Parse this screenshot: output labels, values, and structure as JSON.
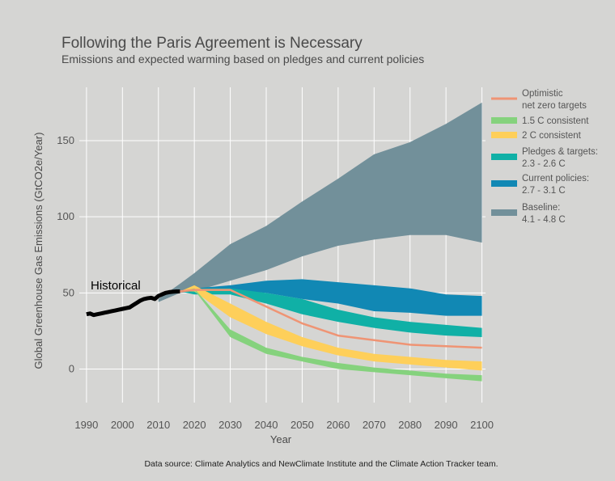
{
  "chart_data": {
    "type": "area",
    "title": "Following the Paris Agreement is Necessary",
    "subtitle": "Emissions and expected warming based on pledges and current policies",
    "xlabel": "Year",
    "ylabel": "Global Greenhouse Gas Emissions (GtCO2e/Year)",
    "xlim": [
      1988,
      2101
    ],
    "ylim": [
      -22,
      185
    ],
    "x_ticks": [
      1990,
      2000,
      2010,
      2020,
      2030,
      2040,
      2050,
      2060,
      2070,
      2080,
      2090,
      2100
    ],
    "y_ticks": [
      0,
      50,
      100,
      150
    ],
    "grid": true,
    "legend_position": "right",
    "annotation": "Historical",
    "source": "Data source: Climate Analytics and NewClimate Institute and the Climate Action Tracker team.",
    "historical": {
      "color": "#000000",
      "x": [
        1990,
        1991,
        1992,
        1993,
        1994,
        1995,
        1996,
        1997,
        1998,
        1999,
        2000,
        2001,
        2002,
        2003,
        2004,
        2005,
        2006,
        2007,
        2008,
        2009,
        2010,
        2011,
        2012,
        2013,
        2014,
        2015,
        2016
      ],
      "y": [
        36,
        36.5,
        35.5,
        36,
        36.5,
        37,
        37.5,
        38,
        38.5,
        39,
        39.5,
        40,
        40.5,
        42,
        43.5,
        45,
        46,
        46.5,
        46.8,
        46,
        48,
        49,
        50,
        50.5,
        50.8,
        51,
        51
      ]
    },
    "series": [
      {
        "name": "Baseline:\n4.1 - 4.8 C",
        "color": "#72909a",
        "style": "band",
        "x": [
          2010,
          2016,
          2020,
          2030,
          2040,
          2050,
          2060,
          2070,
          2080,
          2090,
          2100
        ],
        "low": [
          44,
          50,
          51,
          58,
          65,
          74,
          81,
          85,
          88,
          88,
          83
        ],
        "high": [
          46,
          56,
          63,
          82,
          94,
          110,
          125,
          141,
          149,
          161,
          175
        ]
      },
      {
        "name": "Current policies:\n2.7 - 3.1 C",
        "color": "#1188b4",
        "style": "band",
        "x": [
          2016,
          2020,
          2030,
          2040,
          2050,
          2060,
          2070,
          2080,
          2090,
          2100
        ],
        "low": [
          51,
          52,
          52,
          50,
          46,
          43,
          38,
          37,
          35,
          35
        ],
        "high": [
          51,
          53,
          55,
          58,
          59,
          57,
          55,
          53,
          49,
          48
        ]
      },
      {
        "name": "Pledges & targets:\n2.3 - 2.6 C",
        "color": "#10b0a6",
        "style": "band",
        "x": [
          2016,
          2020,
          2030,
          2040,
          2050,
          2060,
          2070,
          2080,
          2090,
          2100
        ],
        "low": [
          51,
          49,
          49,
          43,
          36,
          31,
          27,
          24,
          22,
          21
        ],
        "high": [
          51,
          53,
          53,
          50,
          46,
          39,
          34,
          31,
          29,
          27
        ]
      },
      {
        "name": "2 C consistent",
        "color": "#fecf5a",
        "style": "band",
        "x": [
          2016,
          2020,
          2030,
          2040,
          2050,
          2060,
          2070,
          2080,
          2090,
          2100
        ],
        "low": [
          51,
          51,
          34,
          23,
          15,
          9,
          5,
          3,
          1,
          -1
        ],
        "high": [
          51,
          55,
          43,
          31,
          21,
          14,
          10,
          8,
          6,
          5
        ]
      },
      {
        "name": "1.5 C consistent",
        "color": "#85d27d",
        "style": "band",
        "x": [
          2016,
          2020,
          2030,
          2040,
          2050,
          2060,
          2070,
          2080,
          2090,
          2100
        ],
        "low": [
          51,
          52,
          21,
          10,
          5,
          0,
          -2,
          -4,
          -6,
          -8
        ],
        "high": [
          51,
          53,
          26,
          14,
          8,
          4,
          1,
          -1,
          -3,
          -4
        ]
      },
      {
        "name": "Optimistic\nnet zero targets",
        "color": "#ef9474",
        "style": "line",
        "x": [
          2016,
          2020,
          2025,
          2030,
          2040,
          2050,
          2060,
          2070,
          2080,
          2090,
          2100
        ],
        "y": [
          51,
          52,
          52,
          52,
          41,
          30,
          22,
          19,
          16,
          15,
          14
        ]
      }
    ],
    "legend_order": [
      5,
      4,
      3,
      2,
      1,
      0
    ]
  }
}
